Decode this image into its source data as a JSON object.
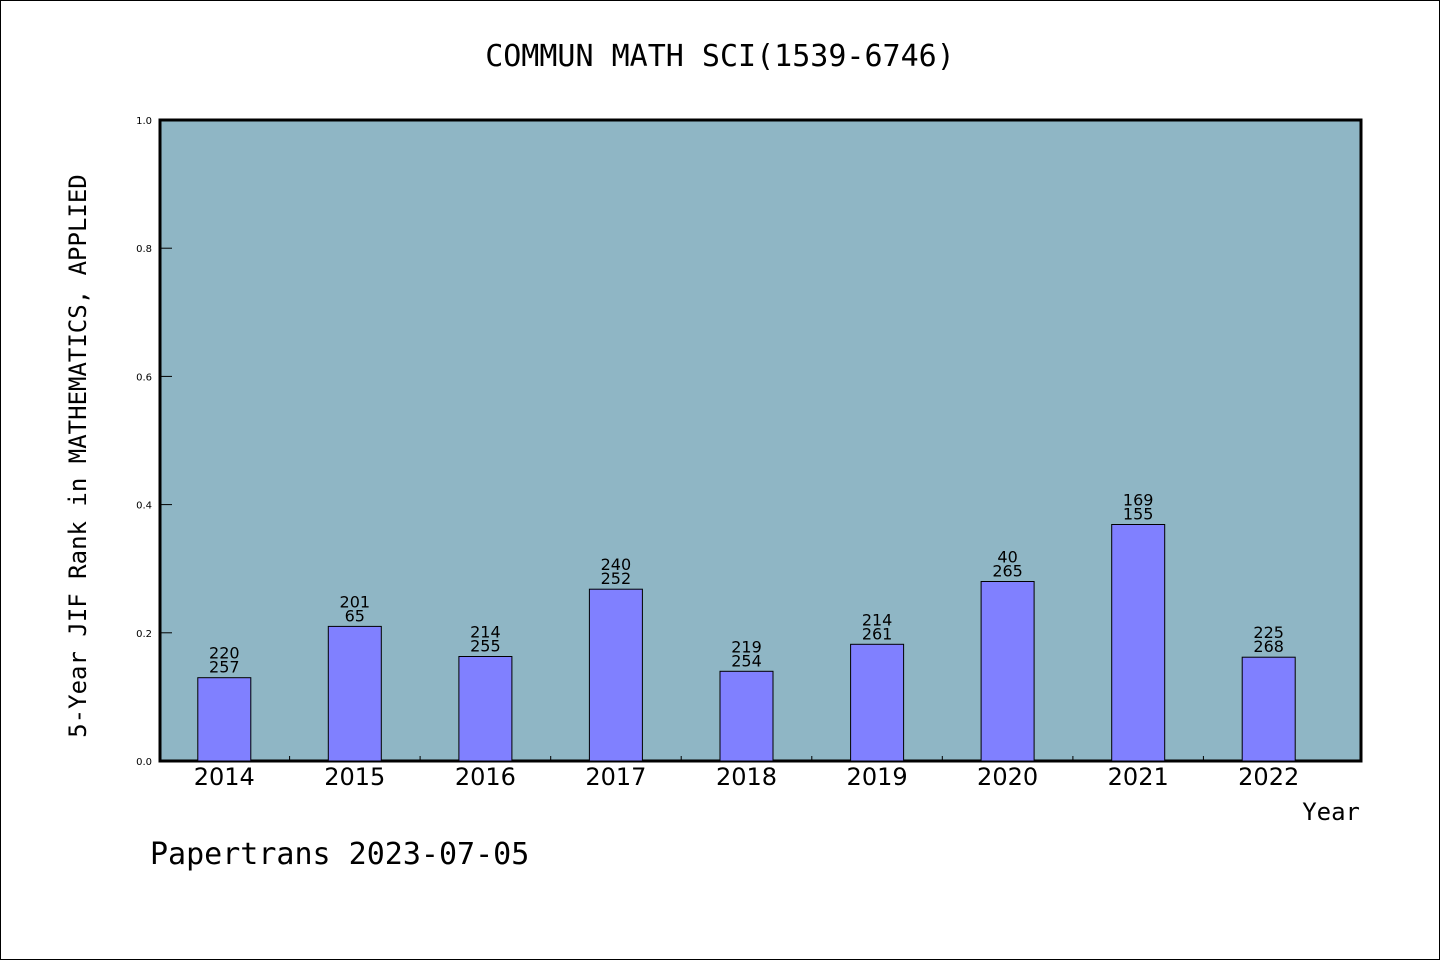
{
  "footer": {
    "text": "Papertrans 2023-07-05"
  },
  "chart_data": {
    "type": "bar",
    "title": "COMMUN MATH SCI(1539-6746)",
    "xlabel": "Year",
    "ylabel": "5-Year JIF Rank in MATHEMATICS, APPLIED",
    "ylim": [
      0.0,
      1.0
    ],
    "yticks": [
      "0.0",
      "0.2",
      "0.4",
      "0.6",
      "0.8",
      "1.0"
    ],
    "grid": false,
    "categories": [
      "2014",
      "2015",
      "2016",
      "2017",
      "2018",
      "2019",
      "2020",
      "2021",
      "2022"
    ],
    "values": [
      0.13,
      0.21,
      0.163,
      0.268,
      0.14,
      0.182,
      0.28,
      0.369,
      0.162
    ],
    "labels_top": [
      "220",
      "201",
      "214",
      "240",
      "219",
      "214",
      "40",
      "169",
      "225"
    ],
    "labels_bottom": [
      "257",
      "65",
      "255",
      "252",
      "254",
      "261",
      "265",
      "155",
      "268"
    ],
    "colors": {
      "plot_background": "#8fb6c5",
      "bar_fill": "#8080ff",
      "bar_stroke": "#000000"
    }
  }
}
